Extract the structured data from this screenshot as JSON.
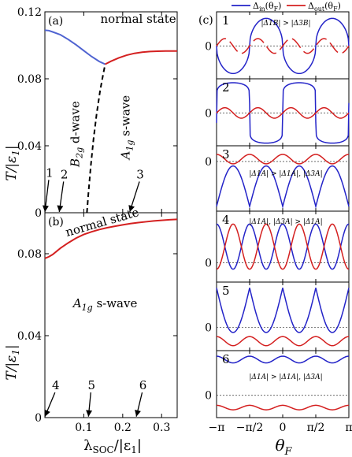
{
  "legend": {
    "in_label": "Δin(θF)",
    "out_label": "Δout(θF)",
    "in_color": "#2323c8",
    "out_color": "#d41f1f"
  },
  "colors": {
    "blue_line": "#4f63d1",
    "red_line": "#d42020",
    "dashed": "#000000",
    "dotted_zero": "#555555"
  },
  "left": {
    "xlabel": "λSOC/|ε1|",
    "ylabel": "T/|ε1|",
    "xlim": [
      0,
      0.34
    ],
    "xticks": [
      {
        "v": 0.1,
        "label": "0.1"
      },
      {
        "v": 0.2,
        "label": "0.2"
      },
      {
        "v": 0.3,
        "label": "0.3"
      }
    ]
  },
  "chart_data": [
    {
      "type": "line",
      "panel": "a",
      "panel_label": "(a)",
      "ylim": [
        0,
        0.12
      ],
      "yticks": [
        {
          "v": 0,
          "label": "0"
        },
        {
          "v": 0.04,
          "label": "0.04"
        },
        {
          "v": 0.08,
          "label": "0.08"
        },
        {
          "v": 0.12,
          "label": "0.12"
        }
      ],
      "series": [
        {
          "color": "#4f63d1",
          "style": "solid",
          "x": [
            0,
            0.01,
            0.02,
            0.04,
            0.06,
            0.08,
            0.1,
            0.12,
            0.14,
            0.155
          ],
          "y": [
            0.109,
            0.1088,
            0.108,
            0.1063,
            0.1035,
            0.1003,
            0.0968,
            0.0933,
            0.0903,
            0.0887
          ]
        },
        {
          "color": "#d42020",
          "style": "solid",
          "x": [
            0.155,
            0.17,
            0.19,
            0.21,
            0.23,
            0.25,
            0.27,
            0.29,
            0.31,
            0.34
          ],
          "y": [
            0.0887,
            0.0905,
            0.0925,
            0.0941,
            0.0952,
            0.0959,
            0.0963,
            0.0965,
            0.0966,
            0.0966
          ]
        },
        {
          "color": "#000000",
          "style": "dashed",
          "x": [
            0.108,
            0.112,
            0.118,
            0.125,
            0.133,
            0.142,
            0.15,
            0.155
          ],
          "y": [
            0,
            0.012,
            0.028,
            0.044,
            0.059,
            0.073,
            0.083,
            0.0887
          ]
        }
      ],
      "annotations": [
        {
          "text": "normal state",
          "x": 0.24,
          "y": 0.1135,
          "size": 15
        },
        {
          "text": "B2g d-wave",
          "x": 0.088,
          "y": 0.047,
          "size": 15,
          "rotate": -90
        },
        {
          "text": "A1g s-wave",
          "x": 0.218,
          "y": 0.051,
          "size": 15,
          "rotate": -90
        }
      ],
      "arrows": [
        {
          "label": "1",
          "lx": 0.012,
          "ly": 0.0215,
          "tx": 0.0,
          "ty": 0.0005
        },
        {
          "label": "2",
          "lx": 0.05,
          "ly": 0.0205,
          "tx": 0.037,
          "ty": 0.0005
        },
        {
          "label": "3",
          "lx": 0.245,
          "ly": 0.0205,
          "tx": 0.218,
          "ty": 0.0005
        }
      ]
    },
    {
      "type": "line",
      "panel": "b",
      "panel_label": "(b)",
      "ylim": [
        0,
        0.1
      ],
      "yticks": [
        {
          "v": 0,
          "label": "0"
        },
        {
          "v": 0.04,
          "label": "0.04"
        },
        {
          "v": 0.08,
          "label": "0.08"
        }
      ],
      "series": [
        {
          "color": "#d42020",
          "style": "solid",
          "x": [
            0,
            0.01,
            0.02,
            0.04,
            0.06,
            0.08,
            0.1,
            0.12,
            0.14,
            0.16,
            0.18,
            0.2,
            0.22,
            0.24,
            0.26,
            0.28,
            0.3,
            0.32,
            0.34
          ],
          "y": [
            0.0777,
            0.0785,
            0.0796,
            0.0827,
            0.0853,
            0.0876,
            0.0894,
            0.0907,
            0.0918,
            0.0927,
            0.0934,
            0.0941,
            0.0947,
            0.0952,
            0.0956,
            0.096,
            0.0963,
            0.0966,
            0.0968
          ]
        }
      ],
      "annotations": [
        {
          "text": "normal state",
          "x": 0.15,
          "y": 0.0935,
          "size": 15,
          "rotate": -16
        },
        {
          "text": "A1g s-wave",
          "x": 0.155,
          "y": 0.0538,
          "size": 15
        }
      ],
      "arrows": [
        {
          "label": "4",
          "lx": 0.028,
          "ly": 0.0138,
          "tx": 0.0,
          "ty": 0.0005
        },
        {
          "label": "5",
          "lx": 0.12,
          "ly": 0.0138,
          "tx": 0.112,
          "ty": 0.0005
        },
        {
          "label": "6",
          "lx": 0.252,
          "ly": 0.0138,
          "tx": 0.235,
          "ty": 0.0005
        }
      ]
    },
    {
      "type": "line",
      "panel": "c",
      "panel_label": "(c)",
      "xlabel": "θF",
      "xlim": [
        -3.1416,
        3.1416
      ],
      "xticks": [
        {
          "v": -3.1416,
          "label": "−π"
        },
        {
          "v": -1.5708,
          "label": "−π/2"
        },
        {
          "v": 0,
          "label": "0"
        },
        {
          "v": 1.5708,
          "label": "π/2"
        },
        {
          "v": 3.1416,
          "label": "π"
        }
      ],
      "subpanels": [
        {
          "num": "1",
          "ylim": [
            -1.25,
            1.3
          ],
          "note": "|Δ1B| > |Δ3B|",
          "blue": {
            "kind": "sq4",
            "a": 1.05,
            "w": 0.45
          },
          "red": {
            "kind": "sin4",
            "amp": 0.28,
            "off": 0.0,
            "gaps": true
          }
        },
        {
          "num": "2",
          "ylim": [
            -1.25,
            1.3
          ],
          "note": "",
          "blue": {
            "kind": "sq2",
            "a": 1.15,
            "w": 0.1
          },
          "red": {
            "kind": "sin4",
            "amp": 0.2,
            "off": 0.0,
            "gaps": false
          }
        },
        {
          "num": "3",
          "ylim": [
            -0.95,
            0.3
          ],
          "note": "|Δ1A| > |Δ1A|, |Δ3A|",
          "blue": {
            "kind": "bump4",
            "off": -0.86,
            "amp": 0.43
          },
          "red": {
            "kind": "cos4",
            "off": 0.045,
            "amp": 0.09
          }
        },
        {
          "num": "4",
          "ylim": [
            -0.3,
            0.8
          ],
          "note": "|Δ1A|, |Δ3A| > |Δ1A|",
          "blue": {
            "kind": "cos4",
            "off": 0.25,
            "amp": 0.35
          },
          "red": {
            "kind": "cos4",
            "off": 0.25,
            "amp": -0.35
          }
        },
        {
          "num": "5",
          "ylim": [
            -0.28,
            0.55
          ],
          "note": "",
          "blue": {
            "kind": "bump4",
            "off": 0.48,
            "amp": -0.3
          },
          "red": {
            "kind": "cos4",
            "off": -0.165,
            "amp": 0.055
          }
        },
        {
          "num": "6",
          "ylim": [
            -0.3,
            0.6
          ],
          "note": "|Δ1A| > |Δ1A|, |Δ3A|",
          "blue": {
            "kind": "cos4",
            "off": 0.48,
            "amp": 0.045
          },
          "red": {
            "kind": "cos4",
            "off": -0.165,
            "amp": 0.03
          }
        }
      ]
    }
  ]
}
